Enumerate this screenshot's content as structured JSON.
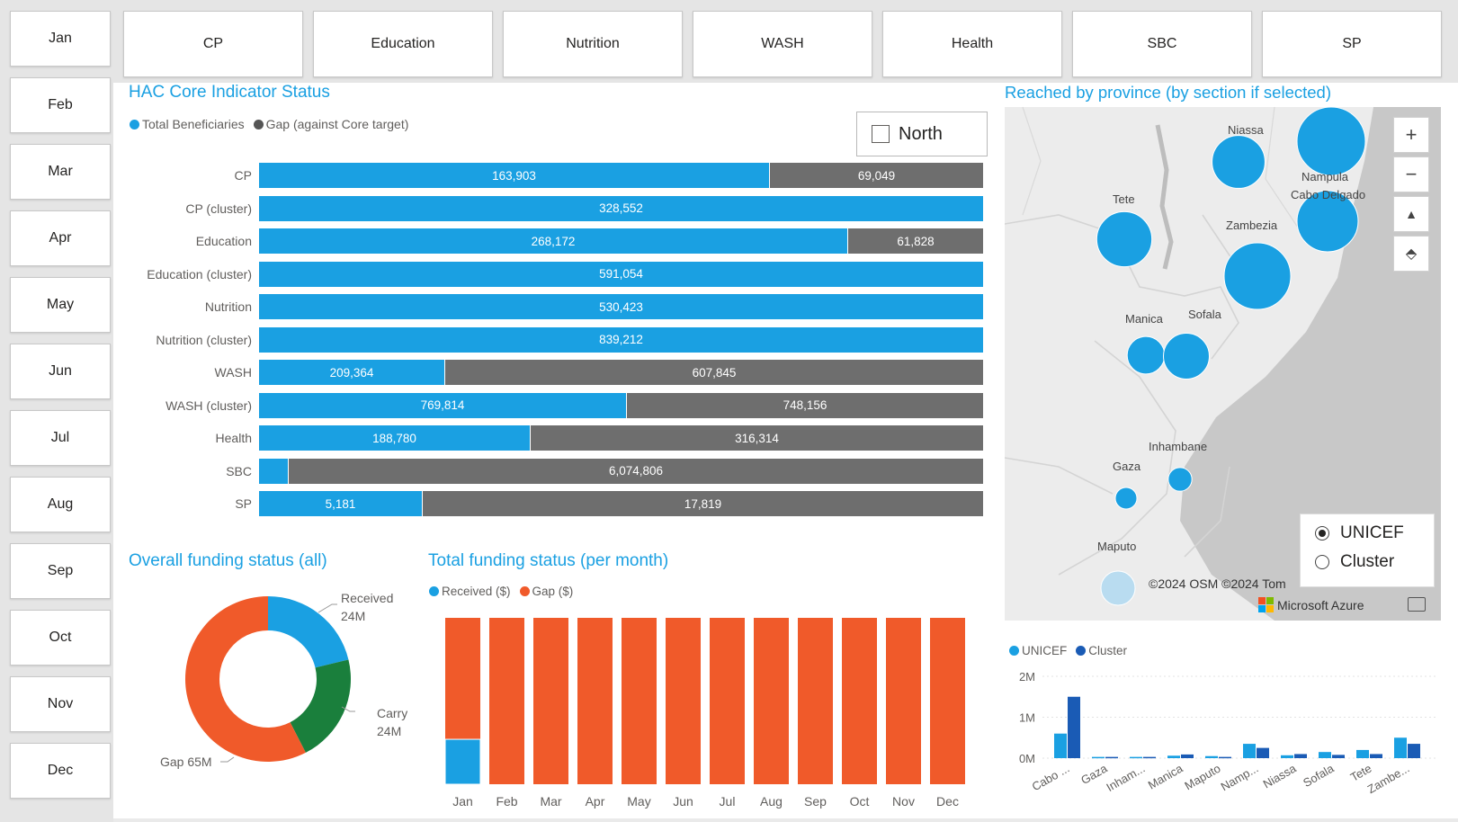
{
  "months": [
    "Jan",
    "Feb",
    "Mar",
    "Apr",
    "May",
    "Jun",
    "Jul",
    "Aug",
    "Sep",
    "Oct",
    "Nov",
    "Dec"
  ],
  "sections": [
    "CP",
    "Education",
    "Nutrition",
    "WASH",
    "Health",
    "SBC",
    "SP"
  ],
  "hac": {
    "title": "HAC Core Indicator Status",
    "legend": {
      "total": "Total Beneficiaries",
      "gap": "Gap (against Core target)"
    },
    "filter_label": "North",
    "rows": [
      {
        "label": "CP",
        "total": "163,903",
        "gap": "69,049",
        "frac": 0.704
      },
      {
        "label": "CP (cluster)",
        "total": "328,552",
        "gap": "",
        "frac": 1.0
      },
      {
        "label": "Education",
        "total": "268,172",
        "gap": "61,828",
        "frac": 0.813
      },
      {
        "label": "Education (cluster)",
        "total": "591,054",
        "gap": "",
        "frac": 1.0
      },
      {
        "label": "Nutrition",
        "total": "530,423",
        "gap": "",
        "frac": 1.0
      },
      {
        "label": "Nutrition (cluster)",
        "total": "839,212",
        "gap": "",
        "frac": 1.0
      },
      {
        "label": "WASH",
        "total": "209,364",
        "gap": "607,845",
        "frac": 0.256
      },
      {
        "label": "WASH (cluster)",
        "total": "769,814",
        "gap": "748,156",
        "frac": 0.507
      },
      {
        "label": "Health",
        "total": "188,780",
        "gap": "316,314",
        "frac": 0.374
      },
      {
        "label": "SBC",
        "total": "",
        "gap": "6,074,806",
        "frac": 0.04
      },
      {
        "label": "SP",
        "total": "5,181",
        "gap": "17,819",
        "frac": 0.225
      }
    ]
  },
  "map": {
    "title": "Reached by province (by section if selected)",
    "provinces": [
      {
        "name": "Niassa",
        "value": 60
      },
      {
        "name": "Nampula",
        "value": 100
      },
      {
        "name": "Cabo Delgado",
        "value": 80
      },
      {
        "name": "Tete",
        "value": 65
      },
      {
        "name": "Zambezia",
        "value": 95
      },
      {
        "name": "Manica",
        "value": 30
      },
      {
        "name": "Sofala",
        "value": 45
      },
      {
        "name": "Inhambane",
        "value": 12
      },
      {
        "name": "Gaza",
        "value": 10
      },
      {
        "name": "Maputo",
        "value": 25
      }
    ],
    "controls": {
      "zoom_in": "+",
      "zoom_out": "−",
      "tilt": "▲",
      "compass": "⬘"
    },
    "attribution": "©2024 OSM ©2024 Tom",
    "brand": "Microsoft Azure",
    "radio_options": [
      "UNICEF",
      "Cluster"
    ],
    "radio_selected": "UNICEF",
    "colors": {
      "water": "#c8c8c8",
      "land": "#ececec",
      "bubble": "#1aa0e2"
    }
  },
  "overall_funding": {
    "title": "Overall funding status (all)",
    "labels": {
      "received": "Received",
      "received_value": "24M",
      "carry": "Carry",
      "carry_value": "24M",
      "gap": "Gap 65M"
    }
  },
  "monthly_funding": {
    "title": "Total funding status (per month)",
    "legend": {
      "received": "Received ($)",
      "gap": "Gap ($)"
    }
  },
  "province_bar": {
    "legend": {
      "unicef": "UNICEF",
      "cluster": "Cluster"
    }
  },
  "chart_data": [
    {
      "type": "bar",
      "title": "HAC Core Indicator Status",
      "orientation": "horizontal",
      "stacked": true,
      "normalized": true,
      "categories": [
        "CP",
        "CP (cluster)",
        "Education",
        "Education (cluster)",
        "Nutrition",
        "Nutrition (cluster)",
        "WASH",
        "WASH (cluster)",
        "Health",
        "SBC",
        "SP"
      ],
      "series": [
        {
          "name": "Total Beneficiaries",
          "values": [
            163903,
            328552,
            268172,
            591054,
            530423,
            839212,
            209364,
            769814,
            188780,
            null,
            5181
          ]
        },
        {
          "name": "Gap (against Core target)",
          "values": [
            69049,
            0,
            61828,
            0,
            0,
            0,
            607845,
            748156,
            316314,
            6074806,
            17819
          ]
        }
      ],
      "colors": {
        "Total Beneficiaries": "#1aa0e2",
        "Gap (against Core target)": "#6e6e6e"
      }
    },
    {
      "type": "pie",
      "title": "Overall funding status (all)",
      "donut": true,
      "categories": [
        "Received",
        "Carry",
        "Gap"
      ],
      "values": [
        24,
        24,
        65
      ],
      "unit": "M",
      "colors": {
        "Received": "#1aa0e2",
        "Carry": "#1a7f3c",
        "Gap": "#f05a2a"
      }
    },
    {
      "type": "bar",
      "title": "Total funding status (per month)",
      "stacked": true,
      "normalized": true,
      "categories": [
        "Jan",
        "Feb",
        "Mar",
        "Apr",
        "May",
        "Jun",
        "Jul",
        "Aug",
        "Sep",
        "Oct",
        "Nov",
        "Dec"
      ],
      "series": [
        {
          "name": "Received ($)",
          "values": [
            0.27,
            0,
            0,
            0,
            0,
            0,
            0,
            0,
            0,
            0,
            0,
            0
          ]
        },
        {
          "name": "Gap ($)",
          "values": [
            0.73,
            1,
            1,
            1,
            1,
            1,
            1,
            1,
            1,
            1,
            1,
            1
          ]
        }
      ],
      "colors": {
        "Received ($)": "#1aa0e2",
        "Gap ($)": "#f05a2a"
      }
    },
    {
      "type": "bar",
      "title": "",
      "categories": [
        "Cabo ...",
        "Gaza",
        "Inham...",
        "Manica",
        "Maputo",
        "Namp...",
        "Niassa",
        "Sofala",
        "Tete",
        "Zambe..."
      ],
      "series": [
        {
          "name": "UNICEF",
          "values": [
            0.6,
            0.03,
            0.03,
            0.06,
            0.05,
            0.35,
            0.07,
            0.15,
            0.2,
            0.5
          ]
        },
        {
          "name": "Cluster",
          "values": [
            1.5,
            0.03,
            0.03,
            0.09,
            0.03,
            0.25,
            0.1,
            0.08,
            0.1,
            0.35
          ]
        }
      ],
      "ylim": [
        0,
        2
      ],
      "yticks": [
        "0M",
        "1M",
        "2M"
      ],
      "colors": {
        "UNICEF": "#1aa0e2",
        "Cluster": "#1a5bb5"
      }
    }
  ]
}
